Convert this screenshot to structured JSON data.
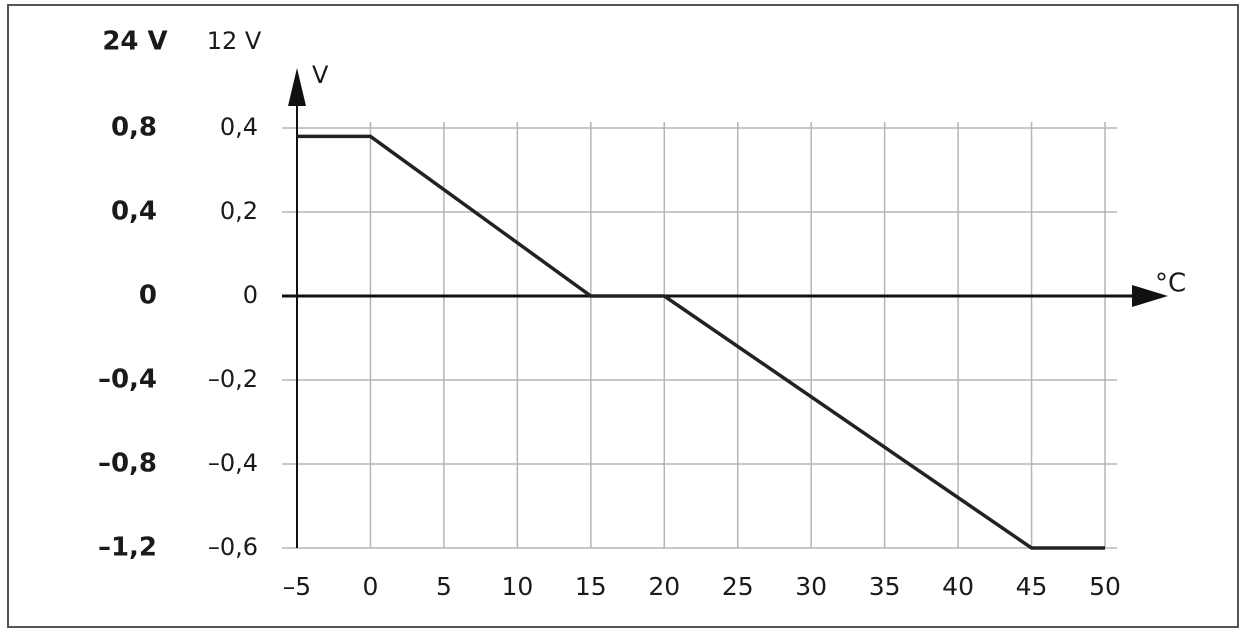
{
  "chart_data": {
    "type": "line",
    "y2_label": "24 V",
    "y_label": "12 V",
    "y_axis_title": "V",
    "x_axis_title": "°C",
    "x": [
      -5,
      0,
      15,
      20,
      45,
      50
    ],
    "values": [
      0.38,
      0.38,
      0,
      0,
      -0.6,
      -0.6
    ],
    "color": "#222222",
    "xlim": [
      -5,
      50
    ],
    "xticks": [
      {
        "value": -5,
        "label": "–5"
      },
      0,
      5,
      10,
      15,
      20,
      25,
      30,
      35,
      40,
      45,
      50
    ],
    "ylim": [
      -0.6,
      0.4
    ],
    "yticks": [
      {
        "value": 0.4,
        "label": "0,4"
      },
      {
        "value": 0.2,
        "label": "0,2"
      },
      0,
      {
        "value": -0.2,
        "label": "–0,2"
      },
      {
        "value": -0.4,
        "label": "–0,4"
      },
      {
        "value": -0.6,
        "label": "–0,6"
      }
    ],
    "y2lim": [
      -1.2,
      0.8
    ],
    "y2ticks": [
      {
        "value": 0.8,
        "label": "0,8"
      },
      {
        "value": 0.4,
        "label": "0,4"
      },
      0,
      {
        "value": -0.4,
        "label": "–0,4"
      },
      {
        "value": -0.8,
        "label": "–0,8"
      },
      {
        "value": -1.2,
        "label": "–1,2"
      }
    ],
    "grid": true
  }
}
